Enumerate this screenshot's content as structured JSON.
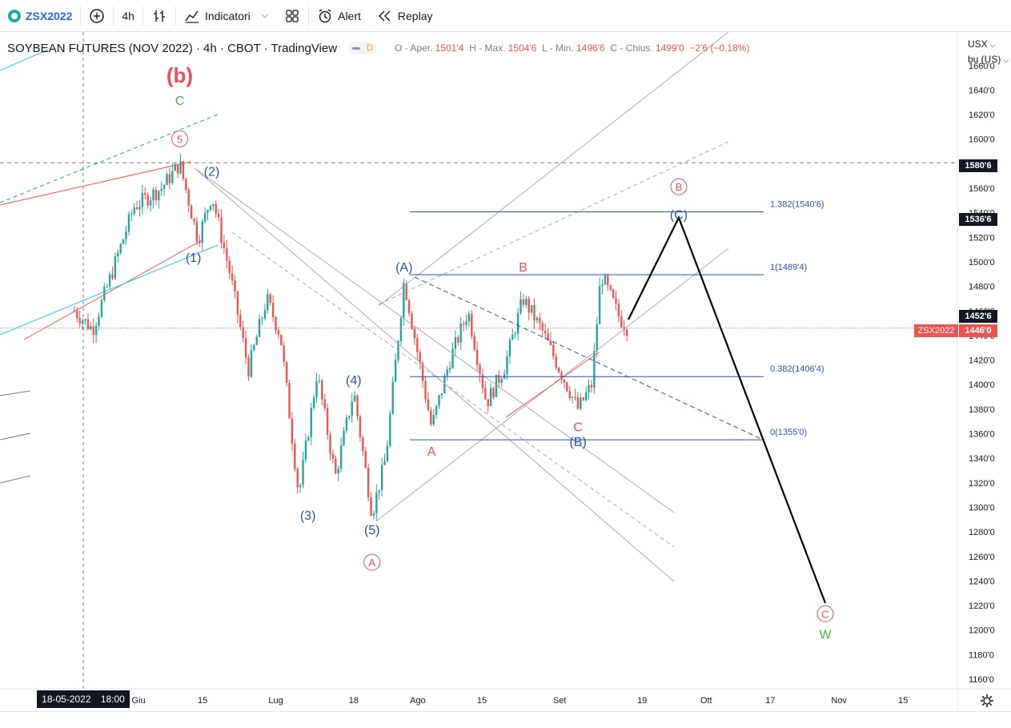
{
  "toolbar": {
    "symbol": "ZSX2022",
    "interval": "4h",
    "indicators_label": "Indicatori",
    "alert_label": "Alert",
    "replay_label": "Replay",
    "icons": [
      "plus-circle-icon",
      "bar-style-icon",
      "indicators-icon",
      "templates-icon",
      "alarm-clock-icon",
      "replay-icon"
    ]
  },
  "legend": {
    "title": "SOYBEAN FUTURES (NOV 2022) · 4h · CBOT · TradingView",
    "badge": "D",
    "open_label": "O - Aper.",
    "open": "1501'4",
    "high_label": "H - Max.",
    "high": "1504'6",
    "low_label": "L - Min.",
    "low": "1496'6",
    "close_label": "C - Chius.",
    "close": "1499'0",
    "change": "−2'6 (−0.18%)"
  },
  "currency": {
    "unit": "USX",
    "measure": "bu (US)"
  },
  "price_tags": {
    "level_hline": "1580'6",
    "level_c": "1536'6",
    "level_prev": "1452'6",
    "symbol_tag": "ZSX2022",
    "last_price": "1446'0"
  },
  "crosshair_date": {
    "date": "18-05-2022",
    "time": "18:00"
  },
  "colors": {
    "up": "#26a69a",
    "down": "#ef5350",
    "wave_blue": "#2f4fb0",
    "wave_red": "#e84c5b",
    "wave_green": "#4caf50",
    "fib": "#2f4fb0",
    "channel": "#a0a0a8",
    "last_price_bg": "#ef5350"
  },
  "chart_data": {
    "type": "candlestick",
    "y_ticks": [
      "1660'0",
      "1640'0",
      "1620'0",
      "1600'0",
      "1580'0",
      "1560'0",
      "1540'0",
      "1520'0",
      "1500'0",
      "1480'0",
      "1460'0",
      "1440'0",
      "1420'0",
      "1400'0",
      "1380'0",
      "1360'0",
      "1340'0",
      "1320'0",
      "1300'0",
      "1280'0",
      "1260'0",
      "1240'0",
      "1220'0",
      "1200'0",
      "1180'0",
      "1160'0"
    ],
    "y_range": [
      1155,
      1660
    ],
    "x_labels": [
      {
        "label": "Giu",
        "date": "2022-06-01"
      },
      {
        "label": "15",
        "date": "2022-06-15"
      },
      {
        "label": "Lug",
        "date": "2022-07-01"
      },
      {
        "label": "18",
        "date": "2022-07-18"
      },
      {
        "label": "Ago",
        "date": "2022-08-01"
      },
      {
        "label": "15",
        "date": "2022-08-15"
      },
      {
        "label": "Set",
        "date": "2022-09-01"
      },
      {
        "label": "19",
        "date": "2022-09-19"
      },
      {
        "label": "Ott",
        "date": "2022-10-03"
      },
      {
        "label": "17",
        "date": "2022-10-17"
      },
      {
        "label": "Nov",
        "date": "2022-11-01"
      },
      {
        "label": "15",
        "date": "2022-11-15"
      }
    ],
    "price_path": [
      [
        "2022-05-18",
        1460
      ],
      [
        "2022-05-22",
        1445
      ],
      [
        "2022-05-27",
        1500
      ],
      [
        "2022-05-31",
        1545
      ],
      [
        "2022-06-06",
        1560
      ],
      [
        "2022-06-10",
        1580
      ],
      [
        "2022-06-14",
        1518
      ],
      [
        "2022-06-17",
        1555
      ],
      [
        "2022-06-21",
        1490
      ],
      [
        "2022-06-25",
        1412
      ],
      [
        "2022-06-29",
        1470
      ],
      [
        "2022-07-02",
        1440
      ],
      [
        "2022-07-06",
        1310
      ],
      [
        "2022-07-10",
        1410
      ],
      [
        "2022-07-14",
        1325
      ],
      [
        "2022-07-18",
        1395
      ],
      [
        "2022-07-22",
        1295
      ],
      [
        "2022-07-25",
        1340
      ],
      [
        "2022-07-29",
        1485
      ],
      [
        "2022-08-02",
        1405
      ],
      [
        "2022-08-04",
        1365
      ],
      [
        "2022-08-08",
        1420
      ],
      [
        "2022-08-12",
        1460
      ],
      [
        "2022-08-16",
        1385
      ],
      [
        "2022-08-20",
        1415
      ],
      [
        "2022-08-24",
        1470
      ],
      [
        "2022-08-28",
        1445
      ],
      [
        "2022-09-01",
        1412
      ],
      [
        "2022-09-05",
        1380
      ],
      [
        "2022-09-08",
        1400
      ],
      [
        "2022-09-10",
        1490
      ],
      [
        "2022-09-14",
        1455
      ],
      [
        "2022-09-16",
        1445
      ]
    ],
    "fib_levels": [
      {
        "ratio": "1.382",
        "price": 1540.75,
        "label": "1.382(1540'6)"
      },
      {
        "ratio": "1",
        "price": 1489.5,
        "label": "1(1489'4)"
      },
      {
        "ratio": "0.382",
        "price": 1406.5,
        "label": "0.382(1406'4)"
      },
      {
        "ratio": "0",
        "price": 1355.0,
        "label": "0(1355'0)"
      }
    ],
    "wave_labels": [
      {
        "text": "(b)",
        "date": "2022-06-10",
        "price": 1646,
        "color": "red",
        "big": true
      },
      {
        "text": "C",
        "date": "2022-06-10",
        "price": 1628,
        "color": "green"
      },
      {
        "text": "5",
        "date": "2022-06-10",
        "price": 1597,
        "color": "red",
        "circle": true
      },
      {
        "text": "(2)",
        "date": "2022-06-17",
        "price": 1570,
        "color": "blue"
      },
      {
        "text": "(1)",
        "date": "2022-06-13",
        "price": 1500,
        "color": "blue"
      },
      {
        "text": "(3)",
        "date": "2022-07-08",
        "price": 1290,
        "color": "blue"
      },
      {
        "text": "(4)",
        "date": "2022-07-18",
        "price": 1400,
        "color": "blue"
      },
      {
        "text": "(5)",
        "date": "2022-07-22",
        "price": 1278,
        "color": "blue"
      },
      {
        "text": "A",
        "date": "2022-07-22",
        "price": 1252,
        "color": "red",
        "circle": true
      },
      {
        "text": "(A)",
        "date": "2022-07-29",
        "price": 1492,
        "color": "blue"
      },
      {
        "text": "A",
        "date": "2022-08-04",
        "price": 1342,
        "color": "red"
      },
      {
        "text": "B",
        "date": "2022-08-24",
        "price": 1492,
        "color": "red"
      },
      {
        "text": "C",
        "date": "2022-09-05",
        "price": 1362,
        "color": "red"
      },
      {
        "text": "(B)",
        "date": "2022-09-05",
        "price": 1350,
        "color": "blue"
      },
      {
        "text": "(C)",
        "date": "2022-09-27",
        "price": 1535,
        "color": "blue"
      },
      {
        "text": "B",
        "date": "2022-09-27",
        "price": 1558,
        "color": "red",
        "circle": true
      },
      {
        "text": "C",
        "date": "2022-10-29",
        "price": 1210,
        "color": "red",
        "circle": true
      },
      {
        "text": "W",
        "date": "2022-10-29",
        "price": 1193,
        "color": "green"
      }
    ],
    "projection": [
      [
        "2022-09-16",
        1453
      ],
      [
        "2022-09-27",
        1536
      ],
      [
        "2022-10-29",
        1222
      ]
    ]
  }
}
